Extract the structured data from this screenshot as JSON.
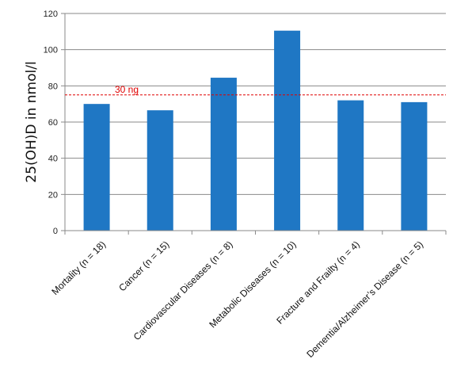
{
  "chart_data": {
    "type": "bar",
    "ylabel": "25(OH)D in nmol/l",
    "xlabel": "",
    "ylim": [
      0,
      120
    ],
    "yticks": [
      0,
      20,
      40,
      60,
      80,
      100,
      120
    ],
    "grid": true,
    "categories": [
      "Mortality (n = 18)",
      "Cancer (n = 15)",
      "Cardiovascular Diseases (n = 8)",
      "Metabolic Diseases (n = 10)",
      "Fracture and Frailty (n = 4)",
      "Dementia/Alzheimer’s Disease (n = 5)"
    ],
    "values": [
      70,
      66.5,
      84.5,
      110.5,
      72,
      71
    ],
    "reference_line": {
      "value": 75,
      "label": "30 ng",
      "color": "#e00000"
    },
    "bar_color": "#1f77c4"
  }
}
